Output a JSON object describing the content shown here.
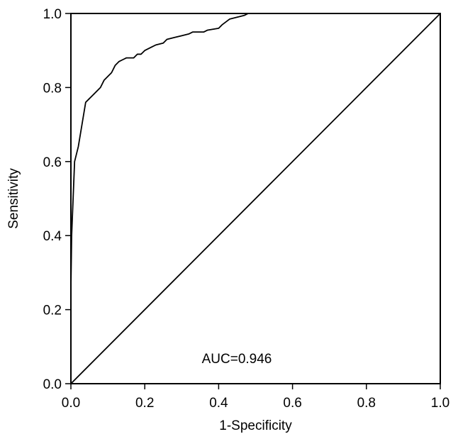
{
  "chart_data": {
    "type": "line",
    "xlabel": "1-Specificity",
    "ylabel": "Sensitivity",
    "xlim": [
      0,
      1
    ],
    "ylim": [
      0,
      1
    ],
    "x_ticks": [
      "0.0",
      "0.2",
      "0.4",
      "0.6",
      "0.8",
      "1.0"
    ],
    "y_ticks": [
      "0.0",
      "0.2",
      "0.4",
      "0.6",
      "0.8",
      "1.0"
    ],
    "grid": false,
    "annotation": "AUC=0.946",
    "series": [
      {
        "x": [
          0,
          0,
          0.002,
          0.01,
          0.02,
          0.03,
          0.04,
          0.05,
          0.06,
          0.08,
          0.09,
          0.1,
          0.11,
          0.12,
          0.13,
          0.14,
          0.15,
          0.17,
          0.18,
          0.19,
          0.2,
          0.22,
          0.23,
          0.25,
          0.26,
          0.28,
          0.3,
          0.32,
          0.33,
          0.36,
          0.37,
          0.4,
          0.41,
          0.43,
          0.45,
          0.47,
          0.48,
          0.5,
          0.6,
          0.8,
          1.0
        ],
        "y": [
          0,
          0.26,
          0.4,
          0.6,
          0.64,
          0.7,
          0.76,
          0.77,
          0.78,
          0.8,
          0.82,
          0.83,
          0.84,
          0.86,
          0.87,
          0.875,
          0.88,
          0.88,
          0.89,
          0.89,
          0.9,
          0.91,
          0.915,
          0.92,
          0.93,
          0.935,
          0.94,
          0.945,
          0.95,
          0.95,
          0.955,
          0.96,
          0.97,
          0.985,
          0.99,
          0.995,
          1.0,
          1.0,
          1.0,
          1.0,
          1.0
        ]
      },
      {
        "x": [
          0,
          1
        ],
        "y": [
          0,
          1
        ]
      }
    ]
  }
}
